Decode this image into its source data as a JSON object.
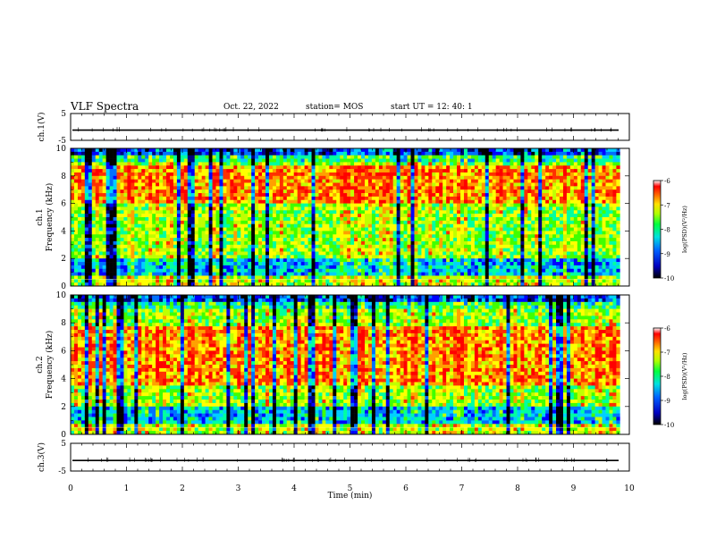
{
  "header": {
    "title": "VLF Spectra",
    "date": "Oct. 22, 2022",
    "station": "station= MOS",
    "start": "start  UT =   12: 40: 1"
  },
  "chart_data": [
    {
      "type": "line",
      "name": "ch1-waveform",
      "ylabel": "ch.1(V)",
      "ylim": [
        -5,
        5
      ],
      "yticks": [
        "5",
        "-5"
      ],
      "xlim": [
        0,
        10
      ],
      "approx_level": -1.2
    },
    {
      "type": "heatmap",
      "name": "ch1-spectrogram",
      "ylabel": "ch.1\nFrequency (kHz)",
      "ylim": [
        0,
        10
      ],
      "yticks": [
        "0",
        "2",
        "4",
        "6",
        "8",
        "10"
      ],
      "xlim": [
        0,
        9.83
      ],
      "colorbar": {
        "label": "log(PSD)(V²/Hz)",
        "range": [
          -10,
          -6
        ],
        "ticks": [
          "-6",
          "-7",
          "-8",
          "-9",
          "-10"
        ]
      },
      "dominant_band_khz": [
        1.5,
        9.5
      ],
      "strong_band_khz": [
        6,
        8.8
      ]
    },
    {
      "type": "heatmap",
      "name": "ch2-spectrogram",
      "ylabel": "ch.2\nFrequency (kHz)",
      "ylim": [
        0,
        10
      ],
      "yticks": [
        "0",
        "2",
        "4",
        "6",
        "8",
        "10"
      ],
      "xlim": [
        0,
        9.83
      ],
      "colorbar": {
        "label": "log(PSD)(V²/Hz)",
        "range": [
          -10,
          -6
        ],
        "ticks": [
          "-6",
          "-7",
          "-8",
          "-9",
          "-10"
        ]
      },
      "dominant_band_khz": [
        1.5,
        9.0
      ],
      "strong_band_khz": [
        3.5,
        7.8
      ]
    },
    {
      "type": "line",
      "name": "ch3-waveform",
      "ylabel": "ch.3(V)",
      "ylim": [
        -5,
        5
      ],
      "yticks": [
        "5",
        "-5"
      ],
      "xlim": [
        0,
        10
      ],
      "approx_level": -1.2
    }
  ],
  "xaxis": {
    "label": "Time  (min)",
    "ticks": [
      "0",
      "1",
      "2",
      "3",
      "4",
      "5",
      "6",
      "7",
      "8",
      "9",
      "10"
    ]
  },
  "colors": {
    "scale": [
      "#000040",
      "#0000ff",
      "#00a0ff",
      "#00ff80",
      "#80ff00",
      "#ffff00",
      "#ff8000",
      "#ff0000",
      "#ffffff"
    ]
  }
}
